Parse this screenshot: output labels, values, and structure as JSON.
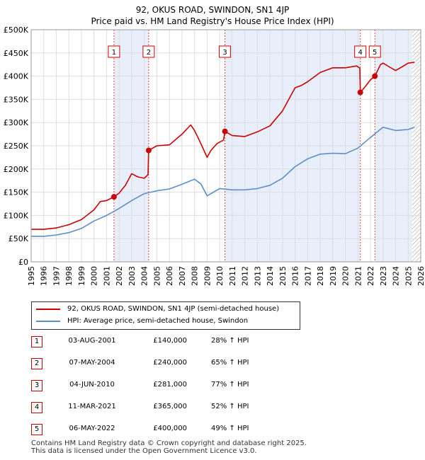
{
  "title_line1": "92, OKUS ROAD, SWINDON, SN1 4JP",
  "title_line2": "Price paid vs. HM Land Registry's House Price Index (HPI)",
  "colors": {
    "property": "#cc0000",
    "hpi": "#5b8fc9",
    "shade": "#e8eefa",
    "marker_border": "#cc0000"
  },
  "legend": {
    "property_label": "92, OKUS ROAD, SWINDON, SN1 4JP (semi-detached house)",
    "hpi_label": "HPI: Average price, semi-detached house, Swindon"
  },
  "sales": [
    {
      "num": "1",
      "date": "03-AUG-2001",
      "price": "£140,000",
      "hpi": "28% ↑ HPI"
    },
    {
      "num": "2",
      "date": "07-MAY-2004",
      "price": "£240,000",
      "hpi": "65% ↑ HPI"
    },
    {
      "num": "3",
      "date": "04-JUN-2010",
      "price": "£281,000",
      "hpi": "77% ↑ HPI"
    },
    {
      "num": "4",
      "date": "11-MAR-2021",
      "price": "£365,000",
      "hpi": "52% ↑ HPI"
    },
    {
      "num": "5",
      "date": "06-MAY-2022",
      "price": "£400,000",
      "hpi": "49% ↑ HPI"
    }
  ],
  "footer_line1": "Contains HM Land Registry data © Crown copyright and database right 2025.",
  "footer_line2": "This data is licensed under the Open Government Licence v3.0.",
  "chart_data": {
    "type": "line",
    "title": "92, OKUS ROAD, SWINDON, SN1 4JP — Price paid vs. HM Land Registry's House Price Index (HPI)",
    "xlabel": "",
    "ylabel": "",
    "xlim": [
      1995,
      2026
    ],
    "ylim": [
      0,
      500000
    ],
    "x_ticks": [
      1995,
      1996,
      1997,
      1998,
      1999,
      2000,
      2001,
      2002,
      2003,
      2004,
      2005,
      2006,
      2007,
      2008,
      2009,
      2010,
      2011,
      2012,
      2013,
      2014,
      2015,
      2016,
      2017,
      2018,
      2019,
      2020,
      2021,
      2022,
      2023,
      2024,
      2025,
      2026
    ],
    "y_ticks": [
      {
        "value": 0,
        "label": "£0"
      },
      {
        "value": 50000,
        "label": "£50K"
      },
      {
        "value": 100000,
        "label": "£100K"
      },
      {
        "value": 150000,
        "label": "£150K"
      },
      {
        "value": 200000,
        "label": "£200K"
      },
      {
        "value": 250000,
        "label": "£250K"
      },
      {
        "value": 300000,
        "label": "£300K"
      },
      {
        "value": 350000,
        "label": "£350K"
      },
      {
        "value": 400000,
        "label": "£400K"
      },
      {
        "value": 450000,
        "label": "£450K"
      },
      {
        "value": 500000,
        "label": "£500K"
      }
    ],
    "grid": true,
    "legend_position": "bottom",
    "shaded_periods": [
      [
        2001.59,
        2004.35
      ],
      [
        2010.42,
        2021.19
      ],
      [
        2022.35,
        2025.3
      ]
    ],
    "hatched_after": 2025.3,
    "series": [
      {
        "name": "92, OKUS ROAD, SWINDON, SN1 4JP (semi-detached house)",
        "color": "#cc0000",
        "x": [
          1995,
          1996,
          1997,
          1998,
          1999,
          2000,
          2000.5,
          2001,
          2001.59,
          2002,
          2002.5,
          2003,
          2003.5,
          2004,
          2004.3,
          2004.35,
          2005,
          2006,
          2007,
          2007.7,
          2008,
          2008.5,
          2009,
          2009.3,
          2009.8,
          2010.3,
          2010.42,
          2011,
          2012,
          2013,
          2014,
          2015,
          2016,
          2016.5,
          2017,
          2018,
          2019,
          2020,
          2020.9,
          2021.15,
          2021.19,
          2021.6,
          2022,
          2022.35,
          2022.8,
          2023,
          2023.5,
          2024,
          2024.5,
          2025,
          2025.5
        ],
        "y": [
          70000,
          70000,
          73000,
          80000,
          91000,
          112000,
          130000,
          132000,
          140000,
          148000,
          165000,
          190000,
          183000,
          180000,
          188000,
          240000,
          250000,
          252000,
          275000,
          295000,
          283000,
          255000,
          225000,
          240000,
          255000,
          262000,
          281000,
          272000,
          270000,
          280000,
          293000,
          325000,
          375000,
          380000,
          388000,
          408000,
          418000,
          418000,
          422000,
          417000,
          365000,
          378000,
          392000,
          400000,
          425000,
          428000,
          420000,
          412000,
          420000,
          428000,
          430000
        ]
      },
      {
        "name": "HPI: Average price, semi-detached house, Swindon",
        "color": "#5b8fc9",
        "x": [
          1995,
          1996,
          1997,
          1998,
          1999,
          2000,
          2001,
          2002,
          2003,
          2004,
          2005,
          2006,
          2007,
          2008,
          2008.5,
          2009,
          2009.5,
          2010,
          2011,
          2012,
          2013,
          2014,
          2015,
          2016,
          2017,
          2018,
          2019,
          2020,
          2021,
          2022,
          2023,
          2024,
          2025,
          2025.5
        ],
        "y": [
          55000,
          55000,
          58000,
          63000,
          72000,
          88000,
          100000,
          115000,
          132000,
          147000,
          153000,
          157000,
          167000,
          178000,
          168000,
          142000,
          150000,
          158000,
          155000,
          155000,
          158000,
          165000,
          180000,
          205000,
          222000,
          232000,
          234000,
          233000,
          245000,
          268000,
          290000,
          283000,
          285000,
          290000
        ]
      }
    ],
    "sale_points": [
      {
        "label": "1",
        "x": 2001.59,
        "y": 140000
      },
      {
        "label": "2",
        "x": 2004.35,
        "y": 240000
      },
      {
        "label": "3",
        "x": 2010.42,
        "y": 281000
      },
      {
        "label": "4",
        "x": 2021.19,
        "y": 365000
      },
      {
        "label": "5",
        "x": 2022.35,
        "y": 400000
      }
    ]
  }
}
